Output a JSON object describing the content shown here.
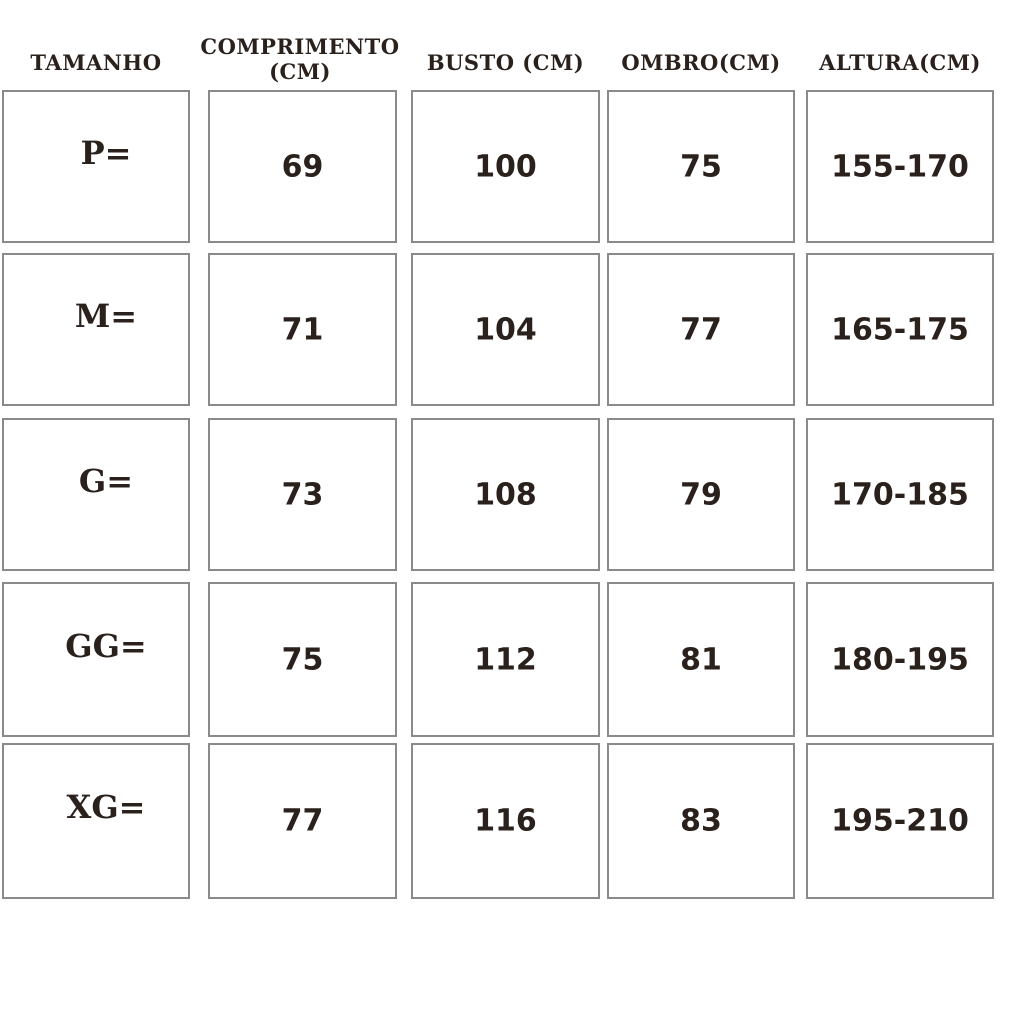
{
  "headers": [
    "TAMANHO",
    "COMPRIMENTO (CM)",
    "BUSTO (CM)",
    "OMBRO(CM)",
    "ALTURA(CM)"
  ],
  "rows": [
    [
      "P=",
      "69",
      "100",
      "75",
      "155-170"
    ],
    [
      "M=",
      "71",
      "104",
      "77",
      "165-175"
    ],
    [
      "G=",
      "73",
      "108",
      "79",
      "170-185"
    ],
    [
      "GG=",
      "75",
      "112",
      "81",
      "180-195"
    ],
    [
      "XG=",
      "77",
      "116",
      "83",
      "195-210"
    ]
  ],
  "colors": {
    "text": "#2a211c",
    "border": "#8a8a8a",
    "background": "#ffffff"
  }
}
